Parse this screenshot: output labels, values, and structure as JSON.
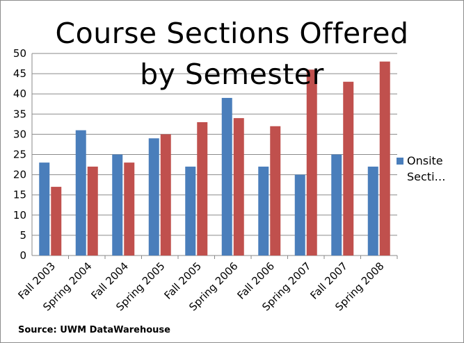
{
  "chart_data": {
    "type": "bar",
    "title_lines": [
      "Course Sections Offered",
      "by Semester"
    ],
    "categories": [
      "Fall 2003",
      "Spring 2004",
      "Fall 2004",
      "Spring 2005",
      "Fall 2005",
      "Spring 2006",
      "Fall 2006",
      "Spring 2007",
      "Fall 2007",
      "Spring 2008"
    ],
    "series": [
      {
        "name": "Onsite Secti…",
        "color": "#4a7ebb",
        "values": [
          23,
          31,
          25,
          29,
          22,
          39,
          22,
          20,
          25,
          22
        ]
      },
      {
        "color": "#c0504d",
        "values": [
          17,
          22,
          23,
          30,
          33,
          34,
          32,
          46,
          43,
          48
        ]
      }
    ],
    "ylim": [
      0,
      50
    ],
    "yticks": [
      "0",
      "5",
      "10",
      "15",
      "20",
      "25",
      "30",
      "35",
      "40",
      "45",
      "50"
    ],
    "grid": true,
    "legend": {
      "position": "right",
      "entries": [
        {
          "label_lines": [
            "Onsite",
            "Secti…"
          ],
          "color": "#4a7ebb"
        }
      ]
    }
  },
  "source": "Source: UWM DataWarehouse"
}
